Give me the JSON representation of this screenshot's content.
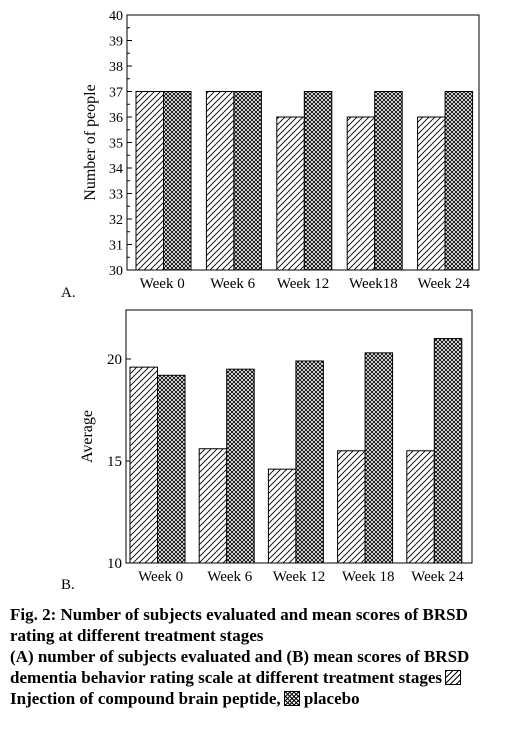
{
  "chart_data": [
    {
      "type": "bar",
      "panel_label": "A.",
      "ylabel": "Number of people",
      "categories": [
        "Week 0",
        "Week 6",
        "Week 12",
        "Week18",
        "Week 24"
      ],
      "ylim": [
        30,
        40
      ],
      "yticks": [
        30,
        31,
        32,
        33,
        34,
        35,
        36,
        37,
        38,
        39,
        40
      ],
      "series": [
        {
          "values": [
            37,
            37,
            36,
            36,
            36
          ],
          "pattern": "diagonal-hatch"
        },
        {
          "values": [
            37,
            37,
            37,
            37,
            37
          ],
          "pattern": "cross-hatch"
        }
      ],
      "grid": false
    },
    {
      "type": "bar",
      "panel_label": "B.",
      "ylabel": "Average",
      "categories": [
        "Week 0",
        "Week 6",
        "Week 12",
        "Week 18",
        "Week 24"
      ],
      "ylim": [
        10,
        22.4
      ],
      "yticks": [
        10,
        15,
        20
      ],
      "series": [
        {
          "values": [
            19.6,
            15.6,
            14.6,
            15.5,
            15.5
          ],
          "pattern": "diagonal-hatch"
        },
        {
          "values": [
            19.2,
            19.5,
            19.9,
            20.3,
            21.0
          ],
          "pattern": "cross-hatch"
        }
      ],
      "grid": false
    }
  ],
  "caption": {
    "line1": "Fig. 2: Number of subjects evaluated and mean scores of BRSD",
    "line2": "rating at different treatment stages",
    "line3": "(A) number of subjects evaluated and (B) mean scores of BRSD",
    "line4": "dementia behavior rating scale at different treatment stages",
    "line5": "Injection of compound brain peptide,",
    "line5_end": "placebo"
  }
}
